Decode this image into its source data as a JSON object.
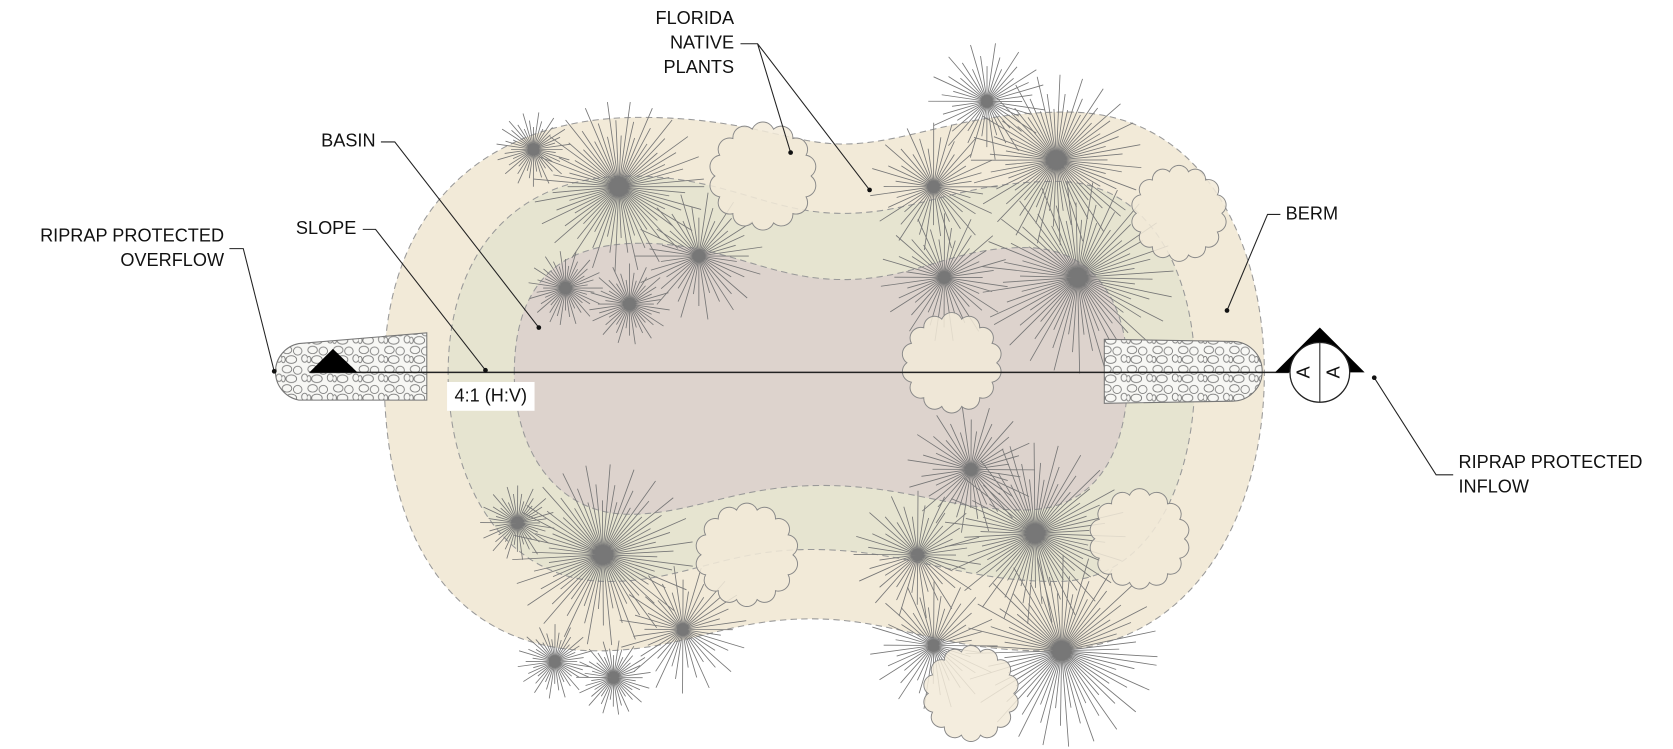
{
  "labels": {
    "florida_native_plants": [
      "FLORIDA",
      "NATIVE",
      "PLANTS"
    ],
    "basin": "BASIN",
    "slope": "SLOPE",
    "riprap_overflow": [
      "RIPRAP PROTECTED",
      "OVERFLOW"
    ],
    "berm": "BERM",
    "riprap_inflow": [
      "RIPRAP PROTECTED",
      "INFLOW"
    ],
    "slope_ratio": "4:1 (H:V)",
    "section_marker": [
      "A",
      "A"
    ]
  }
}
